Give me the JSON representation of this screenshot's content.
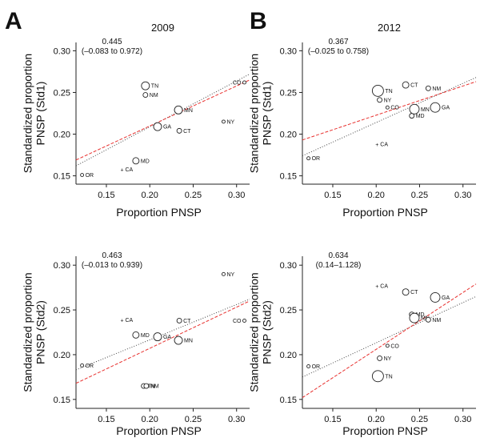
{
  "panel_letters": [
    "A",
    "B"
  ],
  "chart_data": [
    {
      "type": "scatter",
      "title": "2009",
      "xlabel": "Proportion PNSP",
      "ylabel": "Standardized proportion PNSP (Std1)",
      "xlim": [
        0.115,
        0.315
      ],
      "ylim": [
        0.14,
        0.31
      ],
      "xticks": [
        0.15,
        0.2,
        0.25,
        0.3
      ],
      "xtick_labels": [
        "0.15",
        "0.20",
        "0.25",
        "0.30"
      ],
      "yticks": [
        0.15,
        0.2,
        0.25,
        0.3
      ],
      "ytick_labels": [
        "0.15",
        "0.20",
        "0.25",
        "0.30"
      ],
      "annotation": [
        "0.445",
        "(–0.083 to 0.972)"
      ],
      "points": [
        {
          "label": "OR",
          "x": 0.122,
          "y": 0.151,
          "size": 2
        },
        {
          "label": "CA",
          "x": 0.168,
          "y": 0.158,
          "size": 1
        },
        {
          "label": "MD",
          "x": 0.184,
          "y": 0.168,
          "size": 4
        },
        {
          "label": "TN",
          "x": 0.195,
          "y": 0.258,
          "size": 5
        },
        {
          "label": "NM",
          "x": 0.195,
          "y": 0.247,
          "size": 3
        },
        {
          "label": "GA",
          "x": 0.209,
          "y": 0.209,
          "size": 5
        },
        {
          "label": "MN",
          "x": 0.233,
          "y": 0.229,
          "size": 5
        },
        {
          "label": "CT",
          "x": 0.234,
          "y": 0.204,
          "size": 3
        },
        {
          "label": "NY",
          "x": 0.285,
          "y": 0.215,
          "size": 2
        },
        {
          "label": "CO",
          "x": 0.309,
          "y": 0.262,
          "size": 2
        }
      ],
      "lines": [
        {
          "style": "dotted",
          "color": "#444444",
          "x": [
            0.115,
            0.315
          ],
          "y": [
            0.162,
            0.272
          ]
        },
        {
          "style": "dashed",
          "color": "#e8312f",
          "x": [
            0.115,
            0.315
          ],
          "y": [
            0.169,
            0.265
          ]
        }
      ]
    },
    {
      "type": "scatter",
      "title": "2012",
      "xlabel": "Proportion PNSP",
      "ylabel": "Standardized proportion PNSP (Std1)",
      "xlim": [
        0.115,
        0.315
      ],
      "ylim": [
        0.14,
        0.31
      ],
      "xticks": [
        0.15,
        0.2,
        0.25,
        0.3
      ],
      "xtick_labels": [
        "0.15",
        "0.20",
        "0.25",
        "0.30"
      ],
      "yticks": [
        0.15,
        0.2,
        0.25,
        0.3
      ],
      "ytick_labels": [
        "0.15",
        "0.20",
        "0.25",
        "0.30"
      ],
      "annotation": [
        "0.367",
        "(–0.025 to 0.758)"
      ],
      "points": [
        {
          "label": "OR",
          "x": 0.122,
          "y": 0.171,
          "size": 2
        },
        {
          "label": "CA",
          "x": 0.201,
          "y": 0.188,
          "size": 1
        },
        {
          "label": "TN",
          "x": 0.202,
          "y": 0.252,
          "size": 7
        },
        {
          "label": "NY",
          "x": 0.204,
          "y": 0.241,
          "size": 3
        },
        {
          "label": "CO",
          "x": 0.213,
          "y": 0.232,
          "size": 2
        },
        {
          "label": "CT",
          "x": 0.234,
          "y": 0.259,
          "size": 4
        },
        {
          "label": "MD",
          "x": 0.241,
          "y": 0.222,
          "size": 3
        },
        {
          "label": "MN",
          "x": 0.244,
          "y": 0.23,
          "size": 6
        },
        {
          "label": "NM",
          "x": 0.26,
          "y": 0.255,
          "size": 3
        },
        {
          "label": "GA",
          "x": 0.268,
          "y": 0.232,
          "size": 6
        }
      ],
      "lines": [
        {
          "style": "dotted",
          "color": "#444444",
          "x": [
            0.115,
            0.315
          ],
          "y": [
            0.174,
            0.268
          ]
        },
        {
          "style": "dashed",
          "color": "#e8312f",
          "x": [
            0.115,
            0.315
          ],
          "y": [
            0.193,
            0.263
          ]
        }
      ]
    },
    {
      "type": "scatter",
      "title": "",
      "xlabel": "Proportion PNSP",
      "ylabel": "Standardized proportion PNSP (Std2)",
      "xlim": [
        0.115,
        0.315
      ],
      "ylim": [
        0.14,
        0.31
      ],
      "xticks": [
        0.15,
        0.2,
        0.25,
        0.3
      ],
      "xtick_labels": [
        "0.15",
        "0.20",
        "0.25",
        "0.30"
      ],
      "yticks": [
        0.15,
        0.2,
        0.25,
        0.3
      ],
      "ytick_labels": [
        "0.15",
        "0.20",
        "0.25",
        "0.30"
      ],
      "annotation": [
        "0.463",
        "(–0.013 to 0.939)"
      ],
      "points": [
        {
          "label": "OR",
          "x": 0.122,
          "y": 0.188,
          "size": 2
        },
        {
          "label": "CA",
          "x": 0.168,
          "y": 0.239,
          "size": 1
        },
        {
          "label": "MD",
          "x": 0.184,
          "y": 0.222,
          "size": 4
        },
        {
          "label": "TN",
          "x": 0.193,
          "y": 0.165,
          "size": 3
        },
        {
          "label": "NM",
          "x": 0.196,
          "y": 0.165,
          "size": 3
        },
        {
          "label": "GA",
          "x": 0.209,
          "y": 0.22,
          "size": 5
        },
        {
          "label": "MN",
          "x": 0.233,
          "y": 0.216,
          "size": 5
        },
        {
          "label": "CT",
          "x": 0.234,
          "y": 0.238,
          "size": 3
        },
        {
          "label": "NY",
          "x": 0.285,
          "y": 0.29,
          "size": 2
        },
        {
          "label": "CO",
          "x": 0.309,
          "y": 0.238,
          "size": 2
        }
      ],
      "lines": [
        {
          "style": "dotted",
          "color": "#444444",
          "x": [
            0.115,
            0.315
          ],
          "y": [
            0.183,
            0.262
          ]
        },
        {
          "style": "dashed",
          "color": "#e8312f",
          "x": [
            0.115,
            0.315
          ],
          "y": [
            0.168,
            0.26
          ]
        }
      ]
    },
    {
      "type": "scatter",
      "title": "",
      "xlabel": "Proportion PNSP",
      "ylabel": "Standardized proportion PNSP (Std2)",
      "xlim": [
        0.115,
        0.315
      ],
      "ylim": [
        0.14,
        0.31
      ],
      "xticks": [
        0.15,
        0.2,
        0.25,
        0.3
      ],
      "xtick_labels": [
        "0.15",
        "0.20",
        "0.25",
        "0.30"
      ],
      "yticks": [
        0.15,
        0.2,
        0.25,
        0.3
      ],
      "ytick_labels": [
        "0.15",
        "0.20",
        "0.25",
        "0.30"
      ],
      "annotation": [
        "0.634",
        "(0.14–1.128)"
      ],
      "points": [
        {
          "label": "OR",
          "x": 0.122,
          "y": 0.187,
          "size": 2
        },
        {
          "label": "CA",
          "x": 0.201,
          "y": 0.277,
          "size": 1
        },
        {
          "label": "CT",
          "x": 0.234,
          "y": 0.27,
          "size": 4
        },
        {
          "label": "GA",
          "x": 0.268,
          "y": 0.264,
          "size": 6
        },
        {
          "label": "MD",
          "x": 0.241,
          "y": 0.245,
          "size": 3
        },
        {
          "label": "MN",
          "x": 0.244,
          "y": 0.241,
          "size": 6
        },
        {
          "label": "NM",
          "x": 0.26,
          "y": 0.239,
          "size": 3
        },
        {
          "label": "CO",
          "x": 0.213,
          "y": 0.21,
          "size": 2
        },
        {
          "label": "NY",
          "x": 0.204,
          "y": 0.196,
          "size": 3
        },
        {
          "label": "TN",
          "x": 0.202,
          "y": 0.176,
          "size": 7
        }
      ],
      "lines": [
        {
          "style": "dotted",
          "color": "#444444",
          "x": [
            0.115,
            0.315
          ],
          "y": [
            0.175,
            0.265
          ]
        },
        {
          "style": "dashed",
          "color": "#e8312f",
          "x": [
            0.115,
            0.315
          ],
          "y": [
            0.152,
            0.279
          ]
        }
      ]
    }
  ]
}
